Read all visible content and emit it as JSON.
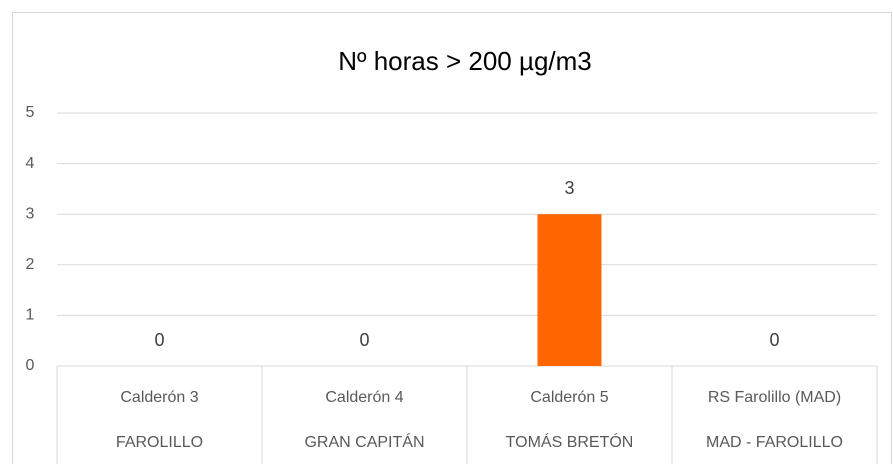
{
  "chart_data": {
    "type": "bar",
    "title": "Nº horas > 200 µg/m3",
    "categories": [
      [
        "Calderón 3",
        "FAROLILLO"
      ],
      [
        "Calderón 4",
        "GRAN CAPITÁN"
      ],
      [
        "Calderón 5",
        "TOMÁS BRETÓN"
      ],
      [
        "RS Farolillo (MAD)",
        "MAD - FAROLILLO"
      ]
    ],
    "values": [
      0,
      0,
      3,
      0
    ],
    "color": "#ff6600",
    "ylim": [
      0,
      5
    ],
    "yticks": [
      0,
      1,
      2,
      3,
      4,
      5
    ],
    "grid": true
  }
}
